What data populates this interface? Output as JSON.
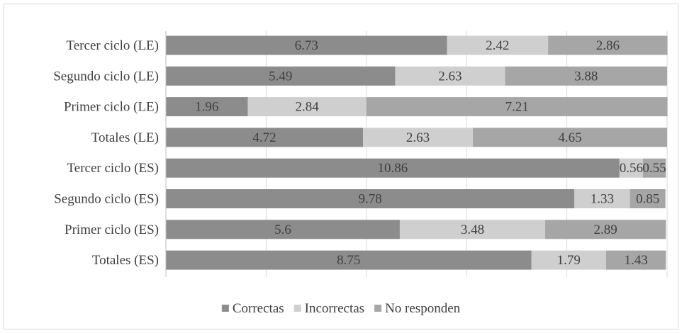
{
  "chart_data": {
    "type": "bar",
    "orientation": "horizontal",
    "stacked": true,
    "categories": [
      "Tercer ciclo (LE)",
      "Segundo ciclo (LE)",
      "Primer ciclo (LE)",
      "Totales (LE)",
      "Tercer ciclo (ES)",
      "Segundo ciclo (ES)",
      "Primer ciclo (ES)",
      "Totales (ES)"
    ],
    "series": [
      {
        "name": "Correctas",
        "color": "#8c8c8c",
        "values": [
          6.73,
          5.49,
          1.96,
          4.72,
          10.86,
          9.78,
          5.6,
          8.75
        ]
      },
      {
        "name": "Incorrectas",
        "color": "#cfcfcf",
        "values": [
          2.42,
          2.63,
          2.84,
          2.63,
          0.56,
          1.33,
          3.48,
          1.79
        ]
      },
      {
        "name": "No responden",
        "color": "#a6a6a6",
        "values": [
          2.86,
          3.88,
          7.21,
          4.65,
          0.55,
          0.85,
          2.89,
          1.43
        ]
      }
    ],
    "xlim": [
      0,
      12
    ],
    "grid": true,
    "legend_position": "bottom",
    "title": "",
    "xlabel": "",
    "ylabel": ""
  }
}
